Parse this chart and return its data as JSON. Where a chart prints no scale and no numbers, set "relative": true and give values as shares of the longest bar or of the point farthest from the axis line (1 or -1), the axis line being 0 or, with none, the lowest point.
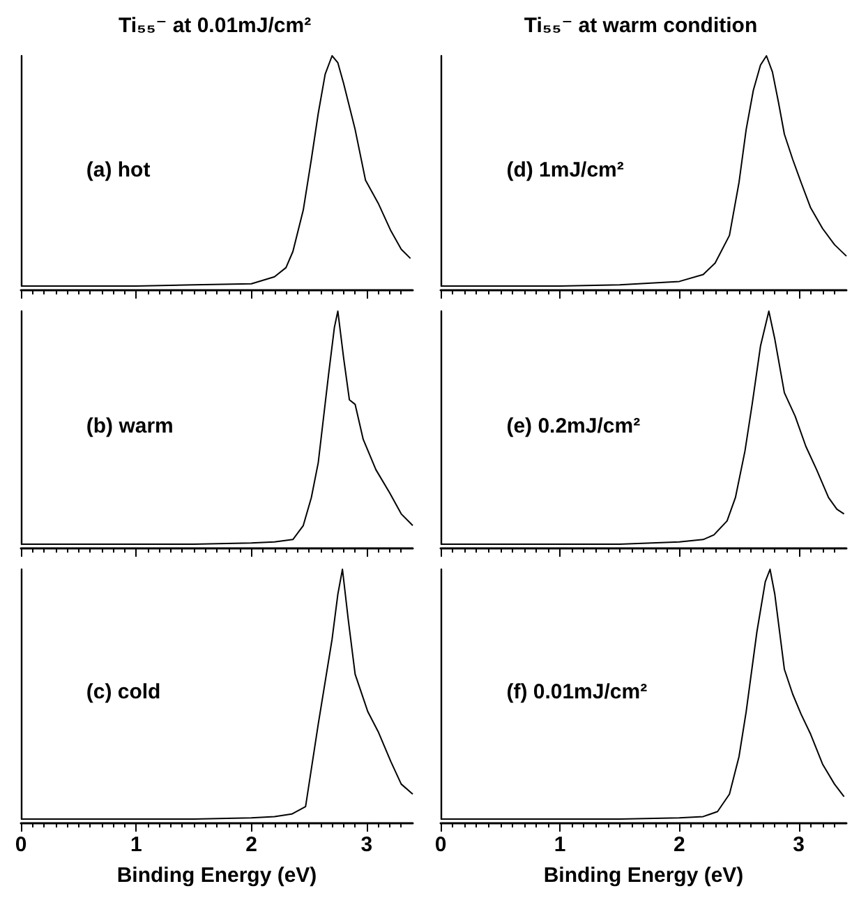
{
  "chart_data": [
    {
      "type": "line",
      "title": "Ti₅₅⁻ at 0.01mJ/cm²",
      "annotations": [
        "(a) hot"
      ],
      "relative": true,
      "xlim": [
        0,
        3.4
      ],
      "xticks": [
        0,
        1,
        2,
        3
      ],
      "tick_labels": false,
      "series": [
        {
          "color": "#000000",
          "x": [
            0,
            0.5,
            1,
            1.5,
            2,
            2.2,
            2.3,
            2.36,
            2.45,
            2.52,
            2.58,
            2.64,
            2.7,
            2.75,
            2.8,
            2.85,
            2.9,
            2.99,
            3.1,
            3.21,
            3.3,
            3.38
          ],
          "values": [
            0,
            0,
            0,
            0.005,
            0.01,
            0.04,
            0.08,
            0.15,
            0.33,
            0.55,
            0.75,
            0.92,
            1,
            0.97,
            0.88,
            0.78,
            0.68,
            0.46,
            0.36,
            0.24,
            0.16,
            0.12
          ]
        }
      ]
    },
    {
      "type": "line",
      "annotations": [
        "(b) warm"
      ],
      "relative": true,
      "xlim": [
        0,
        3.4
      ],
      "xticks": [
        0,
        1,
        2,
        3
      ],
      "tick_labels": false,
      "series": [
        {
          "color": "#000000",
          "x": [
            0,
            0.5,
            1,
            1.5,
            2,
            2.2,
            2.36,
            2.45,
            2.52,
            2.58,
            2.67,
            2.72,
            2.75,
            2.8,
            2.85,
            2.9,
            2.97,
            3.08,
            3.2,
            3.3,
            3.4
          ],
          "values": [
            0,
            0,
            0,
            0,
            0.005,
            0.01,
            0.02,
            0.08,
            0.2,
            0.35,
            0.73,
            0.93,
            1,
            0.8,
            0.62,
            0.6,
            0.45,
            0.32,
            0.22,
            0.13,
            0.08
          ]
        }
      ]
    },
    {
      "type": "line",
      "annotations": [
        "(c) cold"
      ],
      "relative": true,
      "xlim": [
        0,
        3.4
      ],
      "xticks": [
        0,
        1,
        2,
        3
      ],
      "tick_labels": "x",
      "xlabel": "Binding Energy (eV)",
      "series": [
        {
          "color": "#000000",
          "x": [
            0,
            0.5,
            1,
            1.5,
            2,
            2.2,
            2.35,
            2.47,
            2.52,
            2.58,
            2.64,
            2.7,
            2.75,
            2.79,
            2.84,
            2.9,
            3.01,
            3.1,
            3.21,
            3.3,
            3.4
          ],
          "values": [
            0,
            0,
            0,
            0,
            0.005,
            0.01,
            0.02,
            0.05,
            0.2,
            0.38,
            0.55,
            0.72,
            0.9,
            1,
            0.8,
            0.58,
            0.43,
            0.35,
            0.23,
            0.14,
            0.1
          ]
        }
      ]
    },
    {
      "type": "line",
      "title": "Ti₅₅⁻ at warm condition",
      "annotations": [
        "(d) 1mJ/cm²"
      ],
      "relative": true,
      "xlim": [
        0,
        3.4
      ],
      "xticks": [
        0,
        1,
        2,
        3
      ],
      "tick_labels": false,
      "series": [
        {
          "color": "#000000",
          "x": [
            0,
            0.5,
            1,
            1.5,
            2,
            2.2,
            2.3,
            2.42,
            2.5,
            2.56,
            2.62,
            2.68,
            2.73,
            2.78,
            2.83,
            2.88,
            2.95,
            3.02,
            3.1,
            3.2,
            3.3,
            3.4
          ],
          "values": [
            0,
            0,
            0,
            0.005,
            0.02,
            0.05,
            0.1,
            0.22,
            0.45,
            0.68,
            0.85,
            0.96,
            1,
            0.93,
            0.8,
            0.66,
            0.55,
            0.45,
            0.34,
            0.25,
            0.18,
            0.13
          ]
        }
      ]
    },
    {
      "type": "line",
      "annotations": [
        "(e) 0.2mJ/cm²"
      ],
      "relative": true,
      "xlim": [
        0,
        3.4
      ],
      "xticks": [
        0,
        1,
        2,
        3
      ],
      "tick_labels": false,
      "series": [
        {
          "color": "#000000",
          "x": [
            0,
            0.5,
            1,
            1.5,
            2,
            2.2,
            2.29,
            2.4,
            2.47,
            2.55,
            2.61,
            2.68,
            2.75,
            2.8,
            2.88,
            2.97,
            3.06,
            3.15,
            3.25,
            3.32,
            3.38
          ],
          "values": [
            0,
            0,
            0,
            0,
            0.01,
            0.02,
            0.04,
            0.1,
            0.2,
            0.4,
            0.6,
            0.85,
            1,
            0.88,
            0.65,
            0.55,
            0.42,
            0.32,
            0.2,
            0.15,
            0.13
          ]
        }
      ]
    },
    {
      "type": "line",
      "annotations": [
        "(f) 0.01mJ/cm²"
      ],
      "relative": true,
      "xlim": [
        0,
        3.4
      ],
      "xticks": [
        0,
        1,
        2,
        3
      ],
      "tick_labels": "x",
      "xlabel": "Binding Energy (eV)",
      "series": [
        {
          "color": "#000000",
          "x": [
            0,
            0.5,
            1,
            1.5,
            2,
            2.2,
            2.32,
            2.42,
            2.5,
            2.56,
            2.65,
            2.72,
            2.76,
            2.8,
            2.88,
            2.95,
            3.02,
            3.1,
            3.2,
            3.3,
            3.38
          ],
          "values": [
            0,
            0,
            0,
            0,
            0.005,
            0.01,
            0.03,
            0.1,
            0.25,
            0.43,
            0.75,
            0.95,
            1,
            0.9,
            0.6,
            0.5,
            0.42,
            0.34,
            0.22,
            0.14,
            0.09
          ]
        }
      ]
    }
  ]
}
